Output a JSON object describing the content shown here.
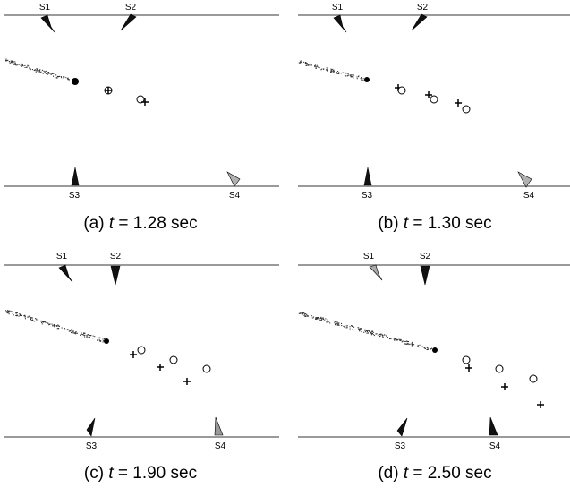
{
  "panels": [
    {
      "id": "a",
      "caption": {
        "prefix": "(a) ",
        "var": "t",
        "rest": " = 1.28 sec"
      },
      "sensors": [
        {
          "label": "S1",
          "fill": "#111111"
        },
        {
          "label": "S2",
          "fill": "#111111"
        },
        {
          "label": "S3",
          "fill": "#111111"
        },
        {
          "label": "S4",
          "fill": "#b0b0b0"
        }
      ]
    },
    {
      "id": "b",
      "caption": {
        "prefix": "(b) ",
        "var": "t",
        "rest": " = 1.30 sec"
      },
      "sensors": [
        {
          "label": "S1",
          "fill": "#111111"
        },
        {
          "label": "S2",
          "fill": "#111111"
        },
        {
          "label": "S3",
          "fill": "#111111"
        },
        {
          "label": "S4",
          "fill": "#b0b0b0"
        }
      ]
    },
    {
      "id": "c",
      "caption": {
        "prefix": "(c) ",
        "var": "t",
        "rest": " = 1.90 sec"
      },
      "sensors": [
        {
          "label": "S1",
          "fill": "#111111"
        },
        {
          "label": "S2",
          "fill": "#111111"
        },
        {
          "label": "S3",
          "fill": "#111111"
        },
        {
          "label": "S4",
          "fill": "#999999"
        }
      ]
    },
    {
      "id": "d",
      "caption": {
        "prefix": "(d) ",
        "var": "t",
        "rest": " = 2.50 sec"
      },
      "sensors": [
        {
          "label": "S1",
          "fill": "#aaaaaa"
        },
        {
          "label": "S2",
          "fill": "#111111"
        },
        {
          "label": "S3",
          "fill": "#111111"
        },
        {
          "label": "S4",
          "fill": "#111111"
        }
      ]
    }
  ],
  "colors": {
    "rail": "#9a9a9a",
    "trail": "#333333",
    "marker": "#000000"
  }
}
